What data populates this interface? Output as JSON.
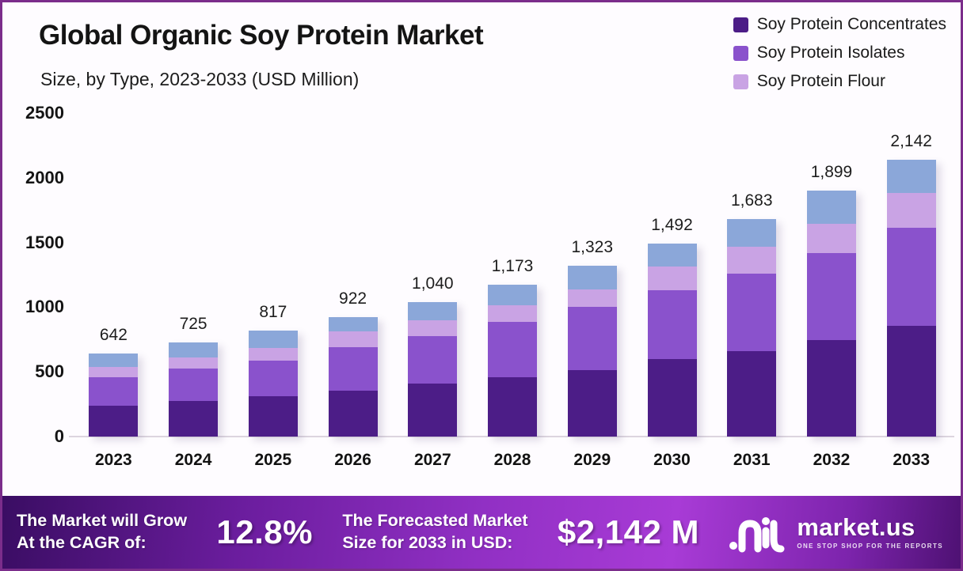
{
  "header": {
    "title": "Global Organic Soy Protein Market",
    "subtitle": "Size, by Type, 2023-2033 (USD Million)"
  },
  "legend": {
    "items": [
      {
        "label": "Soy Protein Concentrates",
        "color": "#4c1d87"
      },
      {
        "label": "Soy Protein Isolates",
        "color": "#8a52cc"
      },
      {
        "label": "Soy Protein Flour",
        "color": "#c9a3e4"
      }
    ]
  },
  "chart_data": {
    "type": "bar",
    "stacked": true,
    "title": "Global Organic Soy Protein Market",
    "subtitle": "Size, by Type, 2023-2033 (USD Million)",
    "xlabel": "",
    "ylabel": "USD Million",
    "categories": [
      "2023",
      "2024",
      "2025",
      "2026",
      "2027",
      "2028",
      "2029",
      "2030",
      "2031",
      "2032",
      "2033"
    ],
    "totals": [
      642,
      725,
      817,
      922,
      1040,
      1173,
      1323,
      1492,
      1683,
      1899,
      2142
    ],
    "total_labels": [
      "642",
      "725",
      "817",
      "922",
      "1,040",
      "1,173",
      "1,323",
      "1,492",
      "1,683",
      "1,899",
      "2,142"
    ],
    "values_estimated": true,
    "series": [
      {
        "name": "Soy Protein Concentrates",
        "color": "#4c1d87",
        "values": [
          238,
          274,
          310,
          355,
          407,
          458,
          516,
          599,
          660,
          749,
          855
        ]
      },
      {
        "name": "Soy Protein Isolates",
        "color": "#8a52cc",
        "values": [
          221,
          254,
          278,
          336,
          367,
          429,
          485,
          532,
          600,
          671,
          760
        ]
      },
      {
        "name": "Soy Protein Flour",
        "color": "#c9a3e4",
        "values": [
          78,
          85,
          98,
          120,
          124,
          128,
          138,
          186,
          207,
          227,
          265
        ]
      },
      {
        "name": "Unlabeled segment (blue, not in legend)",
        "color": "#8ba7d9",
        "values": [
          105,
          112,
          131,
          111,
          142,
          158,
          184,
          175,
          216,
          252,
          262
        ]
      }
    ],
    "y_axis": {
      "ticks": [
        0,
        500,
        1000,
        1500,
        2000,
        2500
      ],
      "max": 2500,
      "grid": false
    },
    "legend_position": "top-right"
  },
  "banner": {
    "left_line1": "The Market will Grow",
    "left_line2": "At the CAGR of:",
    "cagr_value": "12.8%",
    "right_line1": "The Forecasted Market",
    "right_line2": "Size for 2033 in USD:",
    "forecast_value": "$2,142 M",
    "logo_text": "market.us",
    "logo_tagline": "ONE STOP SHOP FOR THE REPORTS"
  },
  "colors": {
    "frame_border": "#7b2d8b",
    "background": "#fefcff",
    "axis_line": "#dcd5df",
    "banner_gradient_left": "#3a0d63",
    "banner_gradient_mid": "#a83bd6",
    "banner_gradient_right": "#4e1173"
  }
}
